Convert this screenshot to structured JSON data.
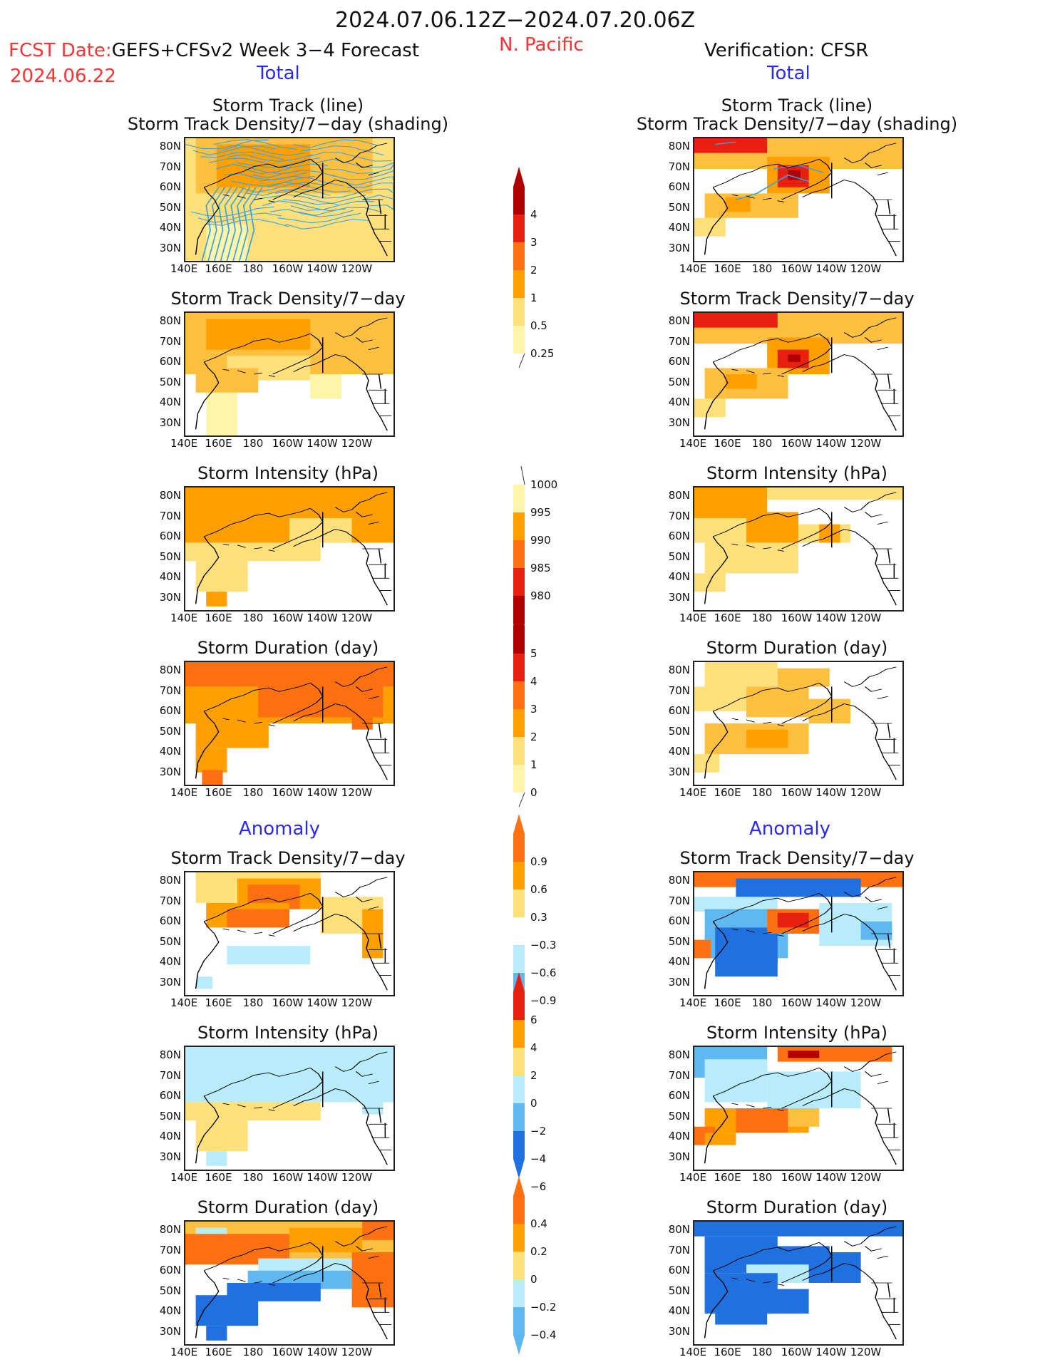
{
  "header": {
    "date_range": "2024.07.06.12Z−2024.07.20.06Z",
    "fcst_label": "FCST Date:",
    "fcst_model": "GEFS+CFSv2 Week 3−4 Forecast",
    "fcst_date": "2024.06.22",
    "region": "N. Pacific",
    "verification": "Verification: CFSR",
    "left_total": "Total",
    "right_total": "Total",
    "left_anomaly": "Anomaly",
    "right_anomaly": "Anomaly"
  },
  "panel_titles": {
    "track_line": "Storm Track (line)",
    "track_shading": "Storm Track Density/7−day (shading)",
    "density": "Storm Track Density/7−day",
    "intensity": "Storm Intensity (hPa)",
    "duration": "Storm Duration (day)"
  },
  "axes": {
    "lat_labels": [
      "80N",
      "70N",
      "60N",
      "50N",
      "40N",
      "30N"
    ],
    "lon_labels": [
      "140E",
      "160E",
      "180",
      "160W",
      "140W",
      "120W"
    ]
  },
  "colorbars": {
    "density_total": [
      "4",
      "3",
      "2",
      "1",
      "0.5",
      "0.25"
    ],
    "intensity_total": [
      "1000",
      "995",
      "990",
      "985",
      "980"
    ],
    "duration_total": [
      "5",
      "4",
      "3",
      "2",
      "1",
      "0"
    ],
    "density_anom": [
      "0.9",
      "0.6",
      "0.3",
      "−0.3",
      "−0.6",
      "−0.9"
    ],
    "intensity_anom": [
      "6",
      "4",
      "2",
      "0",
      "−2",
      "−4",
      "−6"
    ],
    "duration_anom": [
      "0.4",
      "0.2",
      "0",
      "−0.2",
      "−0.4"
    ]
  },
  "colors": {
    "pale_yellow": "#fff5a8",
    "light_yellow": "#ffe07a",
    "orange_light": "#ffc040",
    "orange": "#ffa000",
    "orange_red": "#ff7010",
    "red": "#e82010",
    "dark_red": "#b00000",
    "light_blue": "#b8ecfa",
    "mid_blue": "#60b8f0",
    "blue": "#2070e0",
    "track_blue": "#3ca0e0"
  }
}
